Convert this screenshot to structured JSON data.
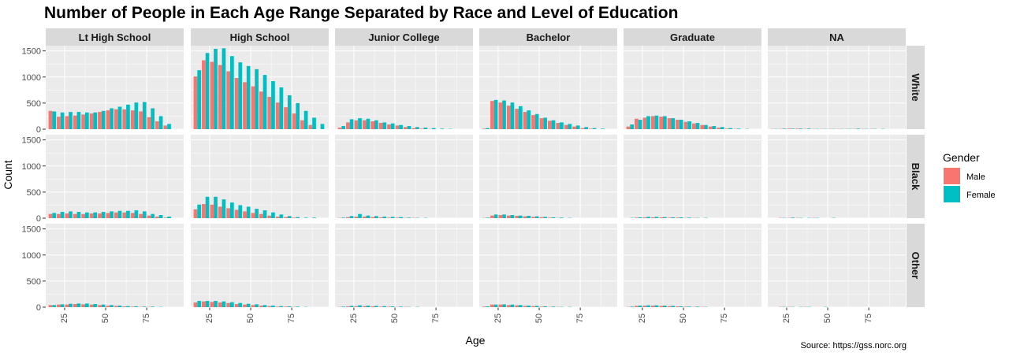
{
  "chart_data": {
    "type": "bar",
    "title": "Number of People in Each Age Range Separated by Race and Level of Education",
    "xlabel": "Age",
    "ylabel": "Count",
    "caption": "Source: https://gss.norc.org",
    "legend": {
      "title": "Gender",
      "position": "right",
      "entries": [
        {
          "name": "Male",
          "color": "#F8766D"
        },
        {
          "name": "Female",
          "color": "#00BFC4"
        }
      ]
    },
    "grid": true,
    "xlim": [
      13.5,
      97.5
    ],
    "ylim": [
      0,
      1600
    ],
    "x_ticks": [
      25,
      50,
      75
    ],
    "x_tick_labels": [
      "25",
      "50",
      "75"
    ],
    "y_ticks": [
      0,
      500,
      1000,
      1500
    ],
    "y_tick_labels": [
      "0",
      "500",
      "1000",
      "1500"
    ],
    "bin_centers": [
      17.5,
      22.5,
      27.5,
      32.5,
      37.5,
      42.5,
      47.5,
      52.5,
      57.5,
      62.5,
      67.5,
      72.5,
      77.5,
      82.5,
      87.5,
      92.5
    ],
    "columns": [
      "Lt High School",
      "High School",
      "Junior College",
      "Bachelor",
      "Graduate",
      "NA"
    ],
    "rows": [
      "White",
      "Black",
      "Other"
    ],
    "facets": [
      {
        "row": "White",
        "col": "Lt High School",
        "male": [
          350,
          240,
          250,
          260,
          280,
          300,
          330,
          360,
          380,
          380,
          360,
          340,
          230,
          150,
          70,
          0
        ],
        "female": [
          340,
          320,
          330,
          330,
          320,
          320,
          350,
          400,
          430,
          470,
          510,
          520,
          400,
          250,
          100,
          0
        ]
      },
      {
        "row": "White",
        "col": "High School",
        "male": [
          1010,
          1320,
          1290,
          1230,
          1110,
          980,
          900,
          820,
          720,
          620,
          510,
          420,
          300,
          170,
          80,
          0
        ],
        "female": [
          1130,
          1460,
          1540,
          1550,
          1400,
          1280,
          1210,
          1150,
          1040,
          920,
          800,
          650,
          500,
          350,
          220,
          100
        ]
      },
      {
        "row": "White",
        "col": "Junior College",
        "male": [
          30,
          130,
          170,
          170,
          150,
          120,
          90,
          70,
          40,
          20,
          10,
          5,
          0,
          0,
          0,
          0
        ],
        "female": [
          60,
          190,
          210,
          200,
          170,
          130,
          110,
          80,
          60,
          40,
          30,
          20,
          10,
          5,
          0,
          0
        ]
      },
      {
        "row": "White",
        "col": "Bachelor",
        "male": [
          10,
          540,
          510,
          450,
          390,
          330,
          270,
          210,
          160,
          120,
          80,
          50,
          20,
          10,
          0,
          0
        ],
        "female": [
          20,
          560,
          550,
          510,
          440,
          360,
          290,
          220,
          170,
          130,
          100,
          70,
          40,
          20,
          10,
          0
        ]
      },
      {
        "row": "White",
        "col": "Graduate",
        "male": [
          50,
          200,
          220,
          250,
          240,
          210,
          180,
          140,
          110,
          80,
          50,
          30,
          10,
          5,
          0,
          0
        ],
        "female": [
          90,
          180,
          250,
          260,
          250,
          210,
          180,
          150,
          120,
          80,
          60,
          40,
          20,
          10,
          5,
          0
        ]
      },
      {
        "row": "White",
        "col": "NA",
        "male": [
          5,
          5,
          10,
          10,
          5,
          5,
          5,
          5,
          5,
          5,
          5,
          5,
          5,
          0,
          0,
          0
        ],
        "female": [
          5,
          10,
          10,
          10,
          10,
          5,
          5,
          5,
          5,
          5,
          10,
          5,
          5,
          5,
          0,
          0
        ]
      },
      {
        "row": "Black",
        "col": "Lt High School",
        "male": [
          80,
          80,
          90,
          80,
          80,
          90,
          90,
          100,
          110,
          110,
          100,
          80,
          50,
          30,
          10,
          0
        ],
        "female": [
          100,
          120,
          130,
          120,
          110,
          110,
          120,
          130,
          140,
          140,
          150,
          130,
          80,
          60,
          30,
          0
        ]
      },
      {
        "row": "Black",
        "col": "High School",
        "male": [
          170,
          270,
          260,
          220,
          190,
          160,
          130,
          100,
          80,
          50,
          30,
          20,
          10,
          0,
          0,
          0
        ],
        "female": [
          260,
          410,
          410,
          360,
          300,
          250,
          220,
          180,
          150,
          110,
          70,
          40,
          20,
          10,
          10,
          0
        ]
      },
      {
        "row": "Black",
        "col": "Junior College",
        "male": [
          5,
          20,
          30,
          30,
          20,
          15,
          10,
          10,
          5,
          5,
          0,
          0,
          0,
          0,
          0,
          0
        ],
        "female": [
          10,
          40,
          80,
          50,
          40,
          30,
          25,
          20,
          10,
          5,
          5,
          0,
          0,
          0,
          0,
          0
        ]
      },
      {
        "row": "Black",
        "col": "Bachelor",
        "male": [
          5,
          50,
          60,
          50,
          45,
          35,
          25,
          20,
          10,
          5,
          0,
          0,
          0,
          0,
          0,
          0
        ],
        "female": [
          10,
          70,
          70,
          60,
          50,
          45,
          35,
          25,
          15,
          10,
          5,
          0,
          0,
          0,
          0,
          0
        ]
      },
      {
        "row": "Black",
        "col": "Graduate",
        "male": [
          0,
          10,
          15,
          15,
          15,
          10,
          10,
          5,
          5,
          0,
          0,
          0,
          0,
          0,
          0,
          0
        ],
        "female": [
          5,
          15,
          25,
          25,
          20,
          15,
          15,
          10,
          5,
          5,
          0,
          0,
          0,
          0,
          0,
          0
        ]
      },
      {
        "row": "Black",
        "col": "NA",
        "male": [
          0,
          5,
          5,
          5,
          0,
          5,
          0,
          0,
          0,
          0,
          0,
          0,
          0,
          0,
          0,
          0
        ],
        "female": [
          0,
          5,
          10,
          5,
          5,
          5,
          0,
          5,
          0,
          0,
          0,
          0,
          0,
          0,
          0,
          0
        ]
      },
      {
        "row": "Other",
        "col": "Lt High School",
        "male": [
          40,
          50,
          50,
          60,
          55,
          50,
          40,
          30,
          25,
          15,
          10,
          5,
          5,
          0,
          0,
          0
        ],
        "female": [
          40,
          55,
          65,
          70,
          70,
          60,
          50,
          40,
          30,
          20,
          15,
          10,
          10,
          5,
          0,
          0
        ]
      },
      {
        "row": "Other",
        "col": "High School",
        "male": [
          90,
          110,
          100,
          90,
          80,
          60,
          50,
          40,
          30,
          20,
          10,
          10,
          5,
          0,
          0,
          0
        ],
        "female": [
          120,
          120,
          120,
          110,
          95,
          80,
          65,
          55,
          40,
          30,
          20,
          15,
          10,
          5,
          0,
          0
        ]
      },
      {
        "row": "Other",
        "col": "Junior College",
        "male": [
          5,
          15,
          20,
          20,
          15,
          10,
          10,
          5,
          5,
          0,
          0,
          0,
          0,
          0,
          0,
          0
        ],
        "female": [
          10,
          25,
          35,
          30,
          25,
          20,
          15,
          10,
          5,
          5,
          0,
          0,
          0,
          0,
          0,
          0
        ]
      },
      {
        "row": "Other",
        "col": "Bachelor",
        "male": [
          10,
          50,
          50,
          40,
          35,
          25,
          20,
          10,
          5,
          5,
          0,
          0,
          0,
          0,
          0,
          0
        ],
        "female": [
          15,
          50,
          55,
          50,
          40,
          30,
          25,
          15,
          10,
          5,
          5,
          0,
          0,
          0,
          0,
          0
        ]
      },
      {
        "row": "Other",
        "col": "Graduate",
        "male": [
          5,
          25,
          30,
          30,
          25,
          20,
          15,
          10,
          5,
          5,
          0,
          0,
          0,
          0,
          0,
          0
        ],
        "female": [
          10,
          30,
          35,
          35,
          30,
          25,
          15,
          10,
          10,
          5,
          0,
          0,
          0,
          0,
          0,
          0
        ]
      },
      {
        "row": "Other",
        "col": "NA",
        "male": [
          0,
          5,
          5,
          0,
          5,
          0,
          0,
          0,
          0,
          0,
          0,
          0,
          0,
          0,
          0,
          0
        ],
        "female": [
          0,
          5,
          5,
          5,
          5,
          0,
          5,
          0,
          0,
          0,
          0,
          0,
          0,
          0,
          0,
          0
        ]
      }
    ]
  },
  "theme": {
    "panel_background": "#EBEBEB",
    "strip_background": "#D9D9D9",
    "grid_color": "#FFFFFF"
  }
}
